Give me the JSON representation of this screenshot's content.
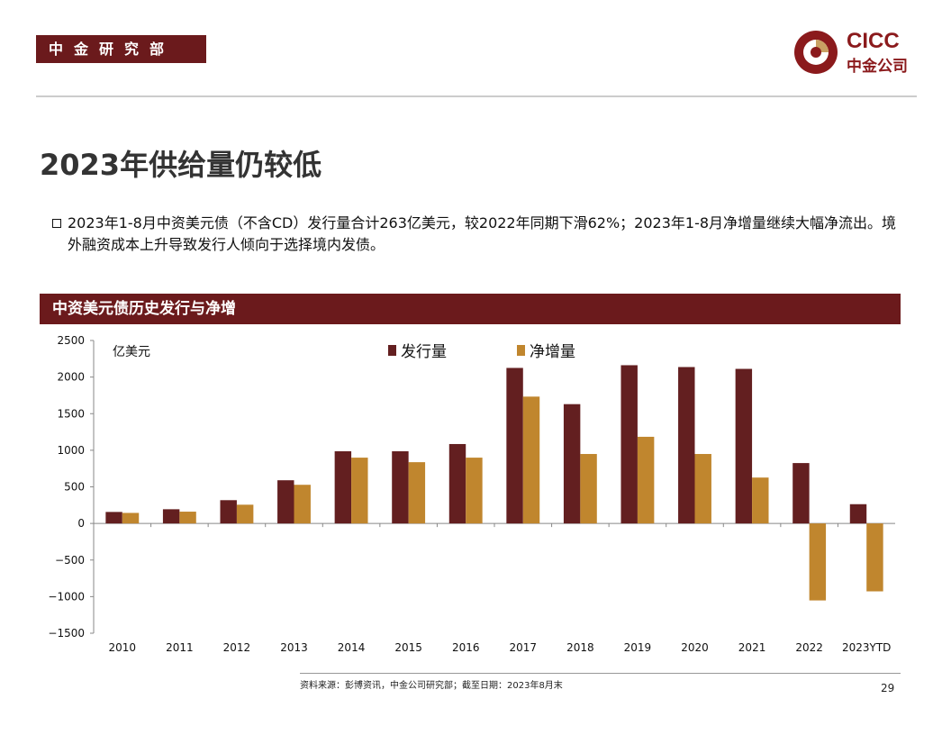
{
  "header": {
    "department": "中金研究部",
    "logo_en": "CICC",
    "logo_cn": "中金公司"
  },
  "title": "2023年供给量仍较低",
  "bullet": "2023年1-8月中资美元债（不含CD）发行量合计263亿美元，较2022年同期下滑62%；2023年1-8月净增量继续大幅净流出。境外融资成本上升导致发行人倾向于选择境内发债。",
  "chart_title": "中资美元债历史发行与净增",
  "chart_data": {
    "type": "bar",
    "unit_label": "亿美元",
    "categories": [
      "2010",
      "2011",
      "2012",
      "2013",
      "2014",
      "2015",
      "2016",
      "2017",
      "2018",
      "2019",
      "2020",
      "2021",
      "2022",
      "2023YTD"
    ],
    "series": [
      {
        "name": "发行量",
        "color": "#631f20",
        "values": [
          157,
          194,
          318,
          590,
          986,
          986,
          1085,
          2125,
          1630,
          2162,
          2137,
          2112,
          825,
          263
        ]
      },
      {
        "name": "净增量",
        "color": "#c0862e",
        "values": [
          144,
          161,
          256,
          528,
          899,
          837,
          899,
          1733,
          949,
          1184,
          949,
          627,
          -1052,
          -928
        ]
      }
    ],
    "ylim": [
      -1500,
      2500
    ],
    "yticks": [
      2500,
      2000,
      1500,
      1000,
      500,
      0,
      -500,
      -1000,
      -1500
    ],
    "ytick_labels": [
      "2500",
      "2000",
      "1500",
      "1000",
      "500",
      "0",
      "−500",
      "−1000",
      "−1500"
    ],
    "grid": false,
    "legend": "top-center"
  },
  "footer": {
    "source": "资料来源：彭博资讯，中金公司研究部；截至日期：2023年8月末",
    "page": "29"
  }
}
